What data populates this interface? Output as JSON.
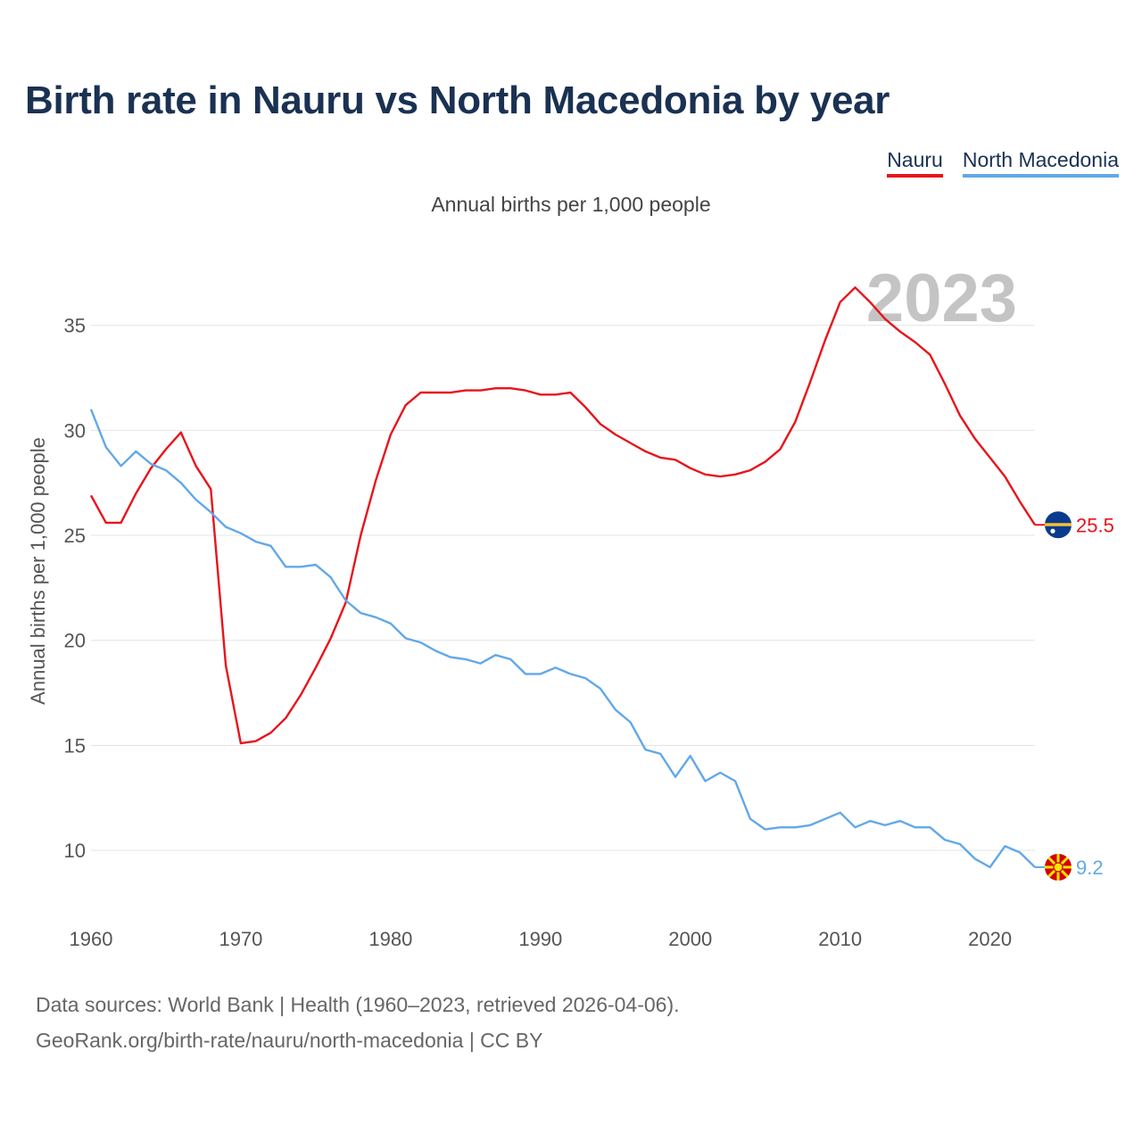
{
  "title": "Birth rate in Nauru vs North Macedonia by year",
  "subtitle": "Annual births per 1,000 people",
  "legend": [
    {
      "name": "Nauru",
      "color": "#e8141b"
    },
    {
      "name": "North Macedonia",
      "color": "#62a8e8"
    }
  ],
  "year_label": "2023",
  "source": {
    "line1": "Data sources: World Bank | Health (1960–2023, retrieved 2026-04-06).",
    "line2": "GeoRank.org/birth-rate/nauru/north-macedonia | CC BY"
  },
  "chart_data": {
    "type": "line",
    "title": "Birth rate in Nauru vs North Macedonia by year",
    "ylabel": "Annual births per 1,000 people",
    "xlabel": "",
    "xlim": [
      1960,
      2023
    ],
    "ylim": [
      7.5,
      38
    ],
    "x_ticks": [
      1960,
      1970,
      1980,
      1990,
      2000,
      2010,
      2020
    ],
    "y_ticks": [
      10,
      15,
      20,
      25,
      30,
      35
    ],
    "grid": true,
    "x": [
      1960,
      1961,
      1962,
      1963,
      1964,
      1965,
      1966,
      1967,
      1968,
      1969,
      1970,
      1971,
      1972,
      1973,
      1974,
      1975,
      1976,
      1977,
      1978,
      1979,
      1980,
      1981,
      1982,
      1983,
      1984,
      1985,
      1986,
      1987,
      1988,
      1989,
      1990,
      1991,
      1992,
      1993,
      1994,
      1995,
      1996,
      1997,
      1998,
      1999,
      2000,
      2001,
      2002,
      2003,
      2004,
      2005,
      2006,
      2007,
      2008,
      2009,
      2010,
      2011,
      2012,
      2013,
      2014,
      2015,
      2016,
      2017,
      2018,
      2019,
      2020,
      2021,
      2022,
      2023
    ],
    "series": [
      {
        "name": "Nauru",
        "color": "#e8141b",
        "end_label": "25.5",
        "values": [
          26.9,
          25.6,
          25.6,
          27.0,
          28.2,
          29.1,
          29.9,
          28.3,
          27.2,
          18.8,
          15.1,
          15.2,
          15.6,
          16.3,
          17.4,
          18.7,
          20.1,
          21.8,
          25.0,
          27.6,
          29.8,
          31.2,
          31.8,
          31.8,
          31.8,
          31.9,
          31.9,
          32.0,
          32.0,
          31.9,
          31.7,
          31.7,
          31.8,
          31.1,
          30.3,
          29.8,
          29.4,
          29.0,
          28.7,
          28.6,
          28.2,
          27.9,
          27.8,
          27.9,
          28.1,
          28.5,
          29.1,
          30.4,
          32.3,
          34.3,
          36.1,
          36.8,
          36.1,
          35.3,
          34.7,
          34.2,
          33.6,
          32.2,
          30.7,
          29.6,
          28.7,
          27.8,
          26.6,
          25.5
        ]
      },
      {
        "name": "North Macedonia",
        "color": "#62a8e8",
        "end_label": "9.2",
        "values": [
          31.0,
          29.2,
          28.3,
          29.0,
          28.4,
          28.1,
          27.5,
          26.7,
          26.1,
          25.4,
          25.1,
          24.7,
          24.5,
          23.5,
          23.5,
          23.6,
          23.0,
          21.9,
          21.3,
          21.1,
          20.8,
          20.1,
          19.9,
          19.5,
          19.2,
          19.1,
          18.9,
          19.3,
          19.1,
          18.4,
          18.4,
          18.7,
          18.4,
          18.2,
          17.7,
          16.7,
          16.1,
          14.8,
          14.6,
          13.5,
          14.5,
          13.3,
          13.7,
          13.3,
          11.5,
          11.0,
          11.1,
          11.1,
          11.2,
          11.5,
          11.8,
          11.1,
          11.4,
          11.2,
          11.4,
          11.1,
          11.1,
          10.5,
          10.3,
          9.6,
          9.2,
          10.2,
          9.9,
          9.2
        ]
      }
    ]
  }
}
